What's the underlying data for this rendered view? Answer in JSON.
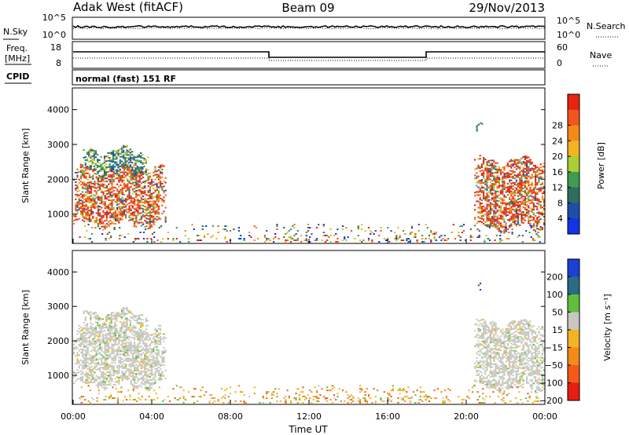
{
  "header": {
    "station": "Adak West (fitACF)",
    "beam": "Beam 09",
    "date": "29/Nov/2013"
  },
  "noise_panel": {
    "left_label": "N.Sky",
    "right_label": "N.Search",
    "left_ticks": [
      "10^5",
      "10^0"
    ],
    "right_ticks": [
      "10^5",
      "10^0"
    ]
  },
  "freq_panel": {
    "left_label_line1": "Freq.",
    "left_label_line2": "[MHz]",
    "right_label": "Nave",
    "left_ticks": [
      "18",
      "8"
    ],
    "right_ticks": [
      "60",
      "0"
    ]
  },
  "cpid_panel": {
    "label": "CPID",
    "text": "normal (fast) 151 RF"
  },
  "chart_data": [
    {
      "type": "heatmap",
      "name": "power-panel",
      "ylabel": "Slant Range [km]",
      "yticks": [
        "1000",
        "2000",
        "3000",
        "4000"
      ],
      "ylim": [
        180,
        4600
      ],
      "xlim_hours": [
        0,
        24
      ],
      "colorbar": {
        "label": "Power [dB]",
        "ticks": [
          "4",
          "8",
          "12",
          "16",
          "20",
          "24",
          "28"
        ],
        "range": [
          0,
          32
        ],
        "colors": [
          "#1034e6",
          "#1d4fa8",
          "#2f6e5e",
          "#3e9b50",
          "#a9cf32",
          "#f2b420",
          "#f48a17",
          "#f2551e",
          "#e8230f"
        ]
      },
      "regions": [
        {
          "t0": 0.0,
          "t1": 4.7,
          "r0": 700,
          "r1": 2300,
          "level": "high"
        },
        {
          "t0": 0.5,
          "t1": 3.8,
          "r0": 2200,
          "r1": 2800,
          "level": "medium"
        },
        {
          "t0": 20.4,
          "t1": 24.0,
          "r0": 600,
          "r1": 2500,
          "level": "high"
        },
        {
          "t0": 20.5,
          "t1": 20.8,
          "r0": 3250,
          "r1": 3550,
          "level": "medium"
        },
        {
          "t0": 0.3,
          "t1": 23.8,
          "r0": 180,
          "r1": 700,
          "level": "low"
        }
      ]
    },
    {
      "type": "heatmap",
      "name": "velocity-panel",
      "ylabel": "Slant Range [km]",
      "yticks": [
        "1000",
        "2000",
        "3000",
        "4000"
      ],
      "ylim": [
        180,
        4600
      ],
      "xlim_hours": [
        0,
        24
      ],
      "xticks": [
        "00:00",
        "04:00",
        "08:00",
        "12:00",
        "16:00",
        "20:00",
        "00:00"
      ],
      "xlabel": "Time UT",
      "colorbar": {
        "label": "Velocity [m s⁻¹]",
        "ticks": [
          "200",
          "100",
          "50",
          "15",
          "−15",
          "−50",
          "−100",
          "−200"
        ],
        "range": [
          -250,
          250
        ],
        "colors": [
          "#1c3fd6",
          "#2a6b86",
          "#5fbf3c",
          "#c8c8c0",
          "#f2b420",
          "#f48a17",
          "#f25a18",
          "#e61e10"
        ]
      },
      "regions": [
        {
          "t0": 0.0,
          "t1": 4.7,
          "r0": 700,
          "r1": 2300,
          "level": "ground"
        },
        {
          "t0": 0.5,
          "t1": 3.8,
          "r0": 2200,
          "r1": 2800,
          "level": "ground"
        },
        {
          "t0": 20.4,
          "t1": 24.0,
          "r0": 600,
          "r1": 2500,
          "level": "ground"
        },
        {
          "t0": 20.5,
          "t1": 20.8,
          "r0": 3250,
          "r1": 3550,
          "level": "positive"
        },
        {
          "t0": 0.3,
          "t1": 23.8,
          "r0": 180,
          "r1": 700,
          "level": "negative"
        }
      ]
    }
  ]
}
